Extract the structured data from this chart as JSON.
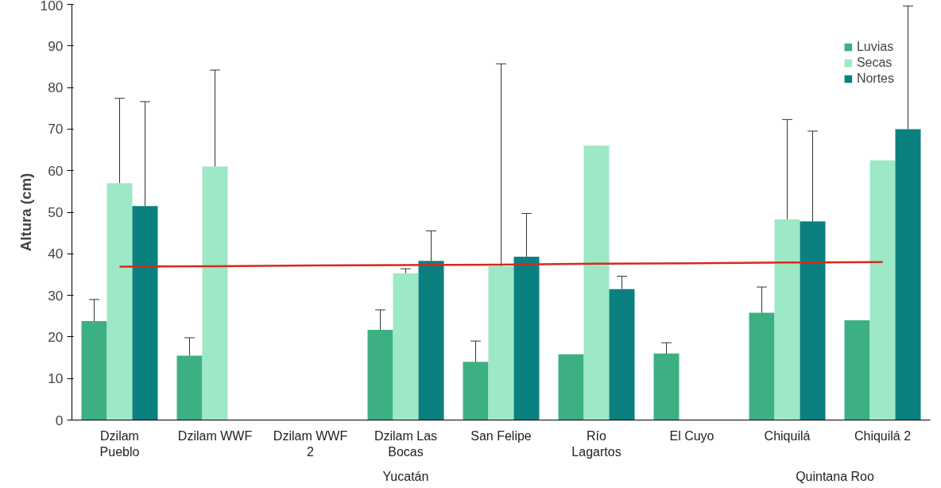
{
  "chart_data": {
    "type": "bar",
    "ylabel": "Altura (cm)",
    "categories": [
      "Dzilam Pueblo",
      "Dzilam WWF",
      "Dzilam WWF 2",
      "Dzilam Las Bocas",
      "San Felipe",
      "Río Lagartos",
      "El Cuyo",
      "Chiquilá",
      "Chiquilá 2"
    ],
    "series": [
      {
        "name": "Luvias",
        "color": "#3cb082",
        "values": [
          23.8,
          15.5,
          null,
          21.7,
          14,
          15.8,
          16,
          25.8,
          24
        ],
        "errors": [
          [
            23.8,
            29
          ],
          [
            15.5,
            19.8
          ],
          null,
          [
            21.7,
            26.5
          ],
          [
            14,
            19
          ],
          null,
          [
            16,
            18.6
          ],
          [
            25.8,
            32
          ],
          null
        ]
      },
      {
        "name": "Secas",
        "color": "#9de8c6",
        "values": [
          57,
          61,
          null,
          35.3,
          37,
          66,
          null,
          48.3,
          62.5
        ],
        "errors": [
          [
            57,
            77.4
          ],
          [
            61,
            84.2
          ],
          null,
          [
            35.3,
            36.4
          ],
          [
            37,
            85.7
          ],
          null,
          null,
          [
            48.3,
            72.3
          ],
          null
        ]
      },
      {
        "name": "Nortes",
        "color": "#0b8080",
        "values": [
          51.5,
          null,
          null,
          38.3,
          39.3,
          31.5,
          null,
          47.8,
          70
        ],
        "errors": [
          [
            51.5,
            76.6
          ],
          null,
          null,
          [
            38.3,
            45.5
          ],
          [
            39.3,
            49.7
          ],
          [
            31.5,
            34.6
          ],
          null,
          [
            47.8,
            69.5
          ],
          [
            70,
            99.6
          ]
        ]
      },
      {
        "type": "line",
        "color": "#d42a1e",
        "values": [
          36.9,
          37.0,
          37.2,
          37.3,
          37.4,
          37.6,
          37.7,
          37.9,
          38.0
        ]
      }
    ],
    "annotations": [
      "Yucatán",
      "Quintana Roo"
    ],
    "ylim": [
      0,
      100
    ],
    "yticks": [
      0,
      10,
      20,
      30,
      40,
      50,
      60,
      70,
      80,
      90,
      100
    ],
    "legend": "top right",
    "grid": false
  }
}
